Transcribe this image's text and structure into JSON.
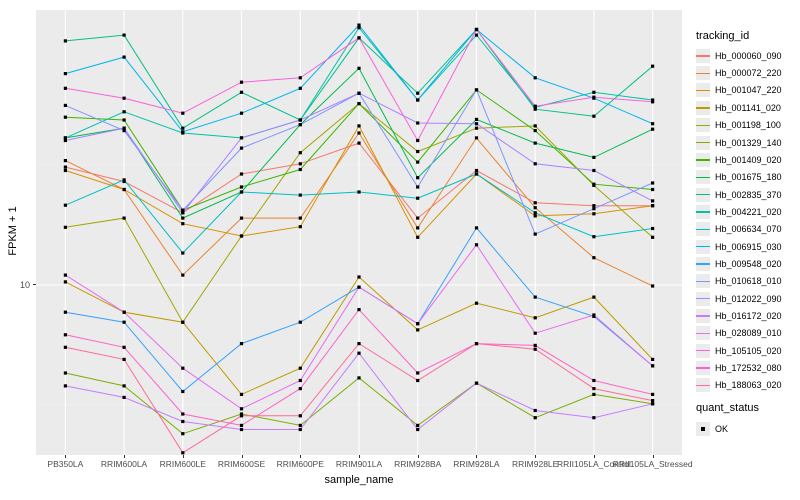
{
  "chart": {
    "y_axis": {
      "title": "FPKM + 1",
      "tick_label": "10"
    },
    "x_axis": {
      "title": "sample_name"
    },
    "legend": {
      "tracking_title": "tracking_id",
      "quant_title": "quant_status",
      "quant_item_label": "OK"
    },
    "colors": {
      "panel_background": "#EBEBEB",
      "grid_major": "#FFFFFF",
      "grid_minor": "#F4F4F4",
      "tick_text": "#4D4D4D",
      "point": "#000000"
    }
  },
  "chart_data": {
    "type": "line",
    "y_scale": "log10",
    "title": "",
    "xlabel": "sample_name",
    "ylabel": "FPKM + 1",
    "y_breaks": [
      10
    ],
    "y_minor_breaks": [
      3.162,
      31.62
    ],
    "ylim_log10": [
      0.25,
      2.15
    ],
    "grid": true,
    "legend_position": "right",
    "point_marker": "black-square",
    "categories": [
      "PB350LA",
      "RRIM600LA",
      "RRIM600LE",
      "RRIM600SE",
      "RRIM600PE",
      "RRIM901LA",
      "RRIM928BA",
      "RRIM928LA",
      "RRIM928LE",
      "RRII105LA_Control",
      "RRII105LA_Stressed"
    ],
    "series": [
      {
        "name": "Hb_000060_090",
        "color": "#F8766D",
        "quant_status": "OK",
        "values": [
          31,
          27,
          20,
          29,
          32,
          39,
          19,
          30,
          22,
          21.4,
          21.4
        ]
      },
      {
        "name": "Hb_000072_220",
        "color": "#EA8331",
        "quant_status": "OK",
        "values": [
          33,
          25,
          11,
          19,
          19,
          43,
          17.3,
          41,
          21,
          13,
          9.9
        ]
      },
      {
        "name": "Hb_001047_220",
        "color": "#D89000",
        "quant_status": "OK",
        "values": [
          30,
          25,
          18,
          16,
          17.5,
          46,
          15.8,
          29,
          19.4,
          19.8,
          21.4
        ]
      },
      {
        "name": "Hb_001141_020",
        "color": "#C09B00",
        "quant_status": "OK",
        "values": [
          10.3,
          7.7,
          7,
          3.5,
          4.5,
          10.8,
          6.5,
          8.4,
          7.3,
          8.9,
          4.9
        ]
      },
      {
        "name": "Hb_001198_100",
        "color": "#A3A500",
        "quant_status": "OK",
        "values": [
          17.4,
          19,
          7,
          16,
          35.6,
          57,
          36,
          45,
          46,
          26,
          15.8
        ]
      },
      {
        "name": "Hb_001329_140",
        "color": "#7CAE00",
        "quant_status": "OK",
        "values": [
          4.3,
          3.8,
          2.4,
          2.9,
          2.6,
          4.1,
          2.6,
          3.9,
          2.8,
          3.5,
          3.2
        ]
      },
      {
        "name": "Hb_001409_020",
        "color": "#39B600",
        "quant_status": "OK",
        "values": [
          50,
          48.7,
          20.5,
          25.6,
          30.3,
          57,
          32.5,
          65,
          44,
          26.3,
          25
        ]
      },
      {
        "name": "Hb_001675_180",
        "color": "#00BB4E",
        "quant_status": "OK",
        "values": [
          41,
          45,
          19,
          24.4,
          46.6,
          80,
          28,
          49,
          39,
          34,
          44.6
        ]
      },
      {
        "name": "Hb_002835_370",
        "color": "#00C087",
        "quant_status": "OK",
        "values": [
          104,
          110,
          45,
          63.5,
          48.7,
          107,
          63,
          116,
          54,
          50.5,
          81.6
        ]
      },
      {
        "name": "Hb_004221_020",
        "color": "#00C1A9",
        "quant_status": "OK",
        "values": [
          41,
          52.7,
          43,
          41,
          48.7,
          118,
          59,
          110,
          55,
          63.5,
          59
        ]
      },
      {
        "name": "Hb_006634_070",
        "color": "#00BFC4",
        "quant_status": "OK",
        "values": [
          21.5,
          27.4,
          13.6,
          24.4,
          23.7,
          24.4,
          23,
          29,
          20,
          15.9,
          17.2
        ]
      },
      {
        "name": "Hb_006915_030",
        "color": "#00B4EF",
        "quant_status": "OK",
        "values": [
          76,
          89,
          43.5,
          52,
          66,
          121,
          59,
          116,
          73,
          60,
          47
        ]
      },
      {
        "name": "Hb_009548_020",
        "color": "#35A2FF",
        "quant_status": "OK",
        "values": [
          7.7,
          7,
          3.6,
          5.7,
          7,
          9.8,
          6.9,
          17.3,
          8.9,
          7.4,
          4.6
        ]
      },
      {
        "name": "Hb_010618_010",
        "color": "#7F96FF",
        "quant_status": "OK",
        "values": [
          56,
          44,
          20.5,
          37.2,
          46.6,
          63,
          25.6,
          65,
          16.3,
          20.8,
          26.6
        ]
      },
      {
        "name": "Hb_012022_090",
        "color": "#A983FF",
        "quant_status": "OK",
        "values": [
          40,
          45,
          20,
          41,
          48.7,
          63,
          47.3,
          47,
          32,
          30,
          22.4
        ]
      },
      {
        "name": "Hb_016172_020",
        "color": "#C77CFF",
        "quant_status": "OK",
        "values": [
          3.8,
          3.4,
          2.7,
          2.5,
          2.5,
          5.2,
          2.5,
          3.9,
          3.0,
          2.8,
          3.2
        ]
      },
      {
        "name": "Hb_028089_010",
        "color": "#E76BF3",
        "quant_status": "OK",
        "values": [
          11,
          7.7,
          4.5,
          3.05,
          4.0,
          9.8,
          6.9,
          14.7,
          6.3,
          7.5,
          4.6
        ]
      },
      {
        "name": "Hb_105105_020",
        "color": "#FA62DB",
        "quant_status": "OK",
        "values": [
          66,
          60,
          52,
          70,
          73,
          107,
          40,
          116,
          55.6,
          60.6,
          58
        ]
      },
      {
        "name": "Hb_172532_080",
        "color": "#FF61C9",
        "quant_status": "OK",
        "values": [
          6.2,
          5.5,
          2.9,
          2.6,
          3.7,
          7.9,
          4.3,
          5.7,
          5.6,
          4.0,
          3.5
        ]
      },
      {
        "name": "Hb_188063_020",
        "color": "#FF6A98",
        "quant_status": "OK",
        "values": [
          5.5,
          4.9,
          2.0,
          2.85,
          2.85,
          5.7,
          4.0,
          5.7,
          5.4,
          3.7,
          3.3
        ]
      }
    ]
  }
}
